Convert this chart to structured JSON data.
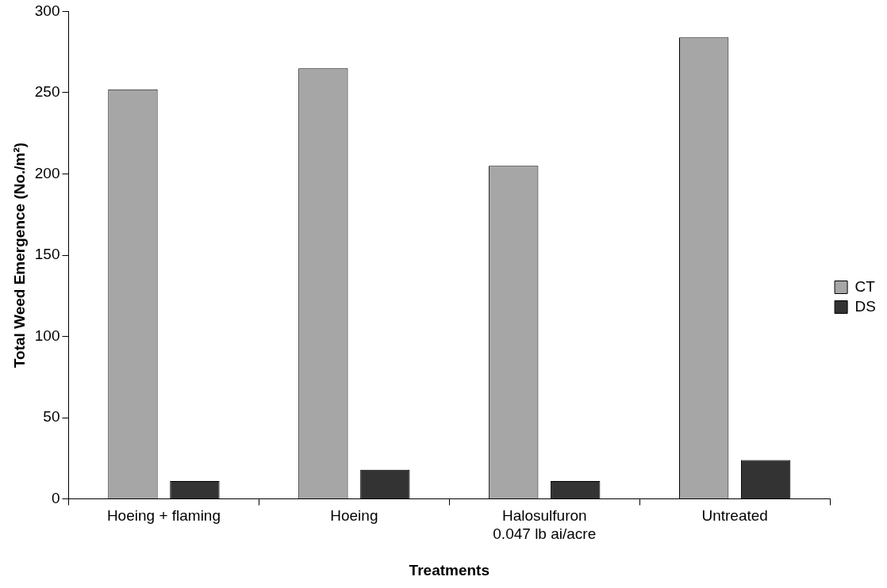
{
  "chart_data": {
    "type": "bar",
    "xlabel": "Treatments",
    "ylabel": "Total Weed Emergence (No./m²)",
    "categories": [
      "Hoeing + flaming",
      "Hoeing",
      "Halosulfuron\n0.047 lb ai/acre",
      "Untreated"
    ],
    "series": [
      {
        "name": "CT",
        "color": "#a6a6a6",
        "values": [
          252,
          265,
          205,
          284
        ]
      },
      {
        "name": "DS",
        "color": "#333333",
        "values": [
          11,
          18,
          11,
          24
        ]
      }
    ],
    "ylim": [
      0,
      300
    ],
    "yticks": [
      0,
      50,
      100,
      150,
      200,
      250,
      300
    ],
    "grid": false,
    "legend": "right"
  }
}
